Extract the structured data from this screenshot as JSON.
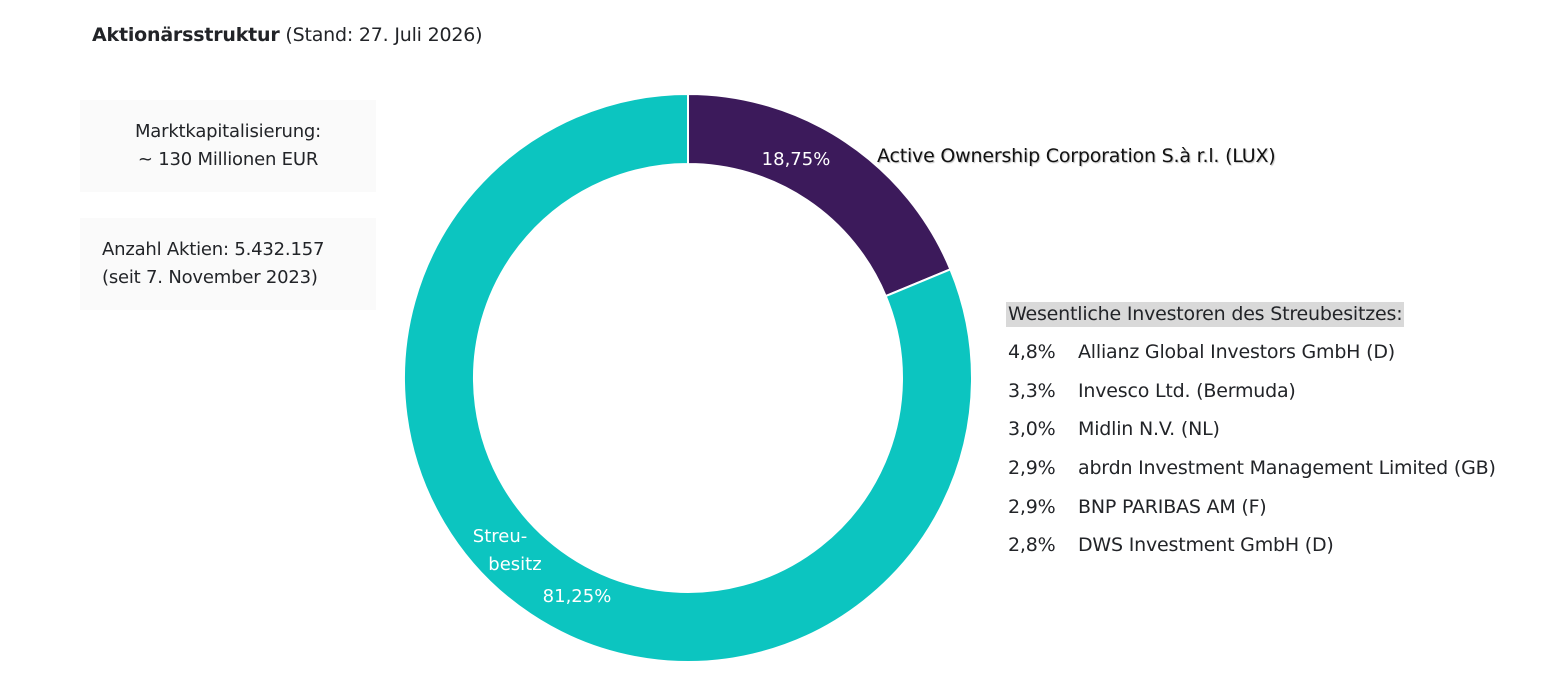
{
  "title": {
    "main": "Aktionärsstruktur",
    "sub": "(Stand: 27. Juli 2026)"
  },
  "market_cap": {
    "label": "Marktkapitalisierung:",
    "value": "~ 130 Millionen EUR"
  },
  "shares": {
    "line1": "Anzahl Aktien:  5.432.157",
    "line2": "(seit 7. November 2023)"
  },
  "chart_data": {
    "type": "pie",
    "donut": true,
    "slices": [
      {
        "name": "Active Ownership Corporation S.à r.l. (LUX)",
        "value": 18.75,
        "label": "18,75%",
        "color": "#3c1a5b"
      },
      {
        "name": "Streubesitz",
        "name_lines": [
          "Streu-",
          "besitz"
        ],
        "value": 81.25,
        "label": "81,25%",
        "color": "#0cc5c0"
      }
    ]
  },
  "investors": {
    "heading": "Wesentliche Investoren des Streubesitzes:",
    "items": [
      {
        "pct": "4,8%",
        "name": "Allianz Global Investors GmbH (D)"
      },
      {
        "pct": "3,3%",
        "name": "Invesco Ltd. (Bermuda)"
      },
      {
        "pct": "3,0%",
        "name": "Midlin N.V. (NL)"
      },
      {
        "pct": "2,9%",
        "name": "abrdn Investment Management Limited (GB)"
      },
      {
        "pct": "2,9%",
        "name": "BNP PARIBAS AM (F)"
      },
      {
        "pct": "2,8%",
        "name": "DWS Investment GmbH (D)"
      }
    ]
  }
}
